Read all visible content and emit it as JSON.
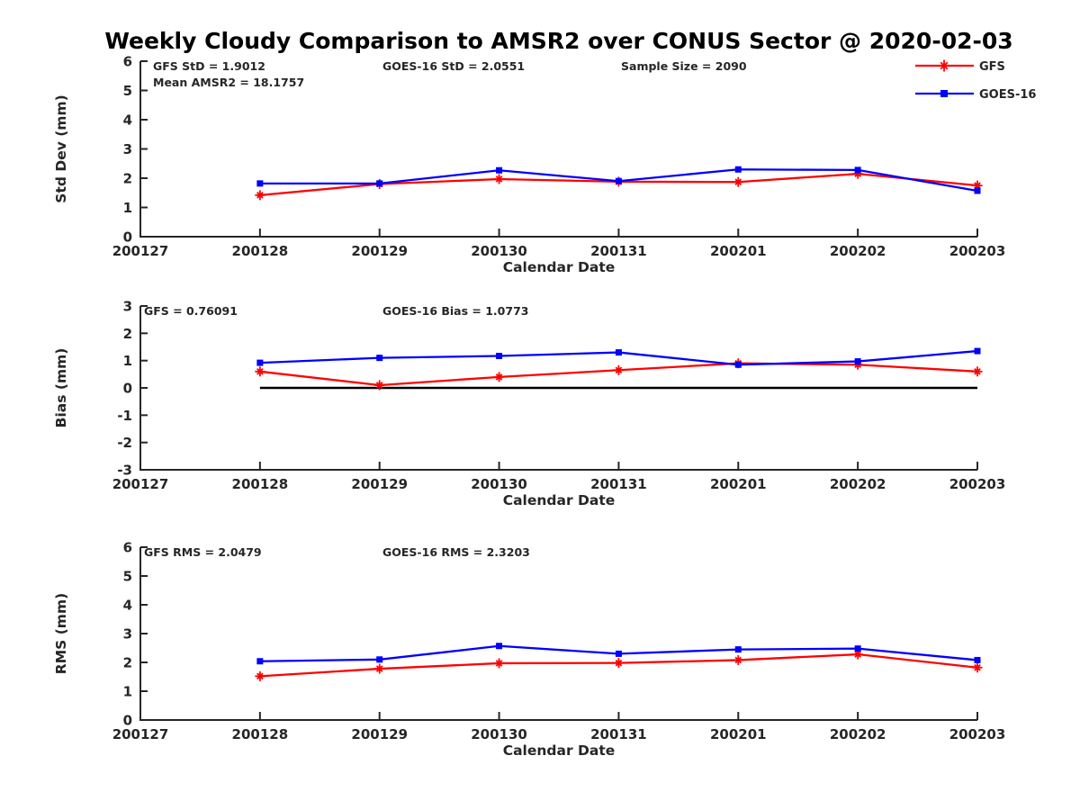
{
  "title": "Weekly Cloudy Comparison to AMSR2 over CONUS Sector @ 2020-02-03",
  "axis_color": "#262626",
  "series_colors": {
    "gfs": "#ff0000",
    "goes16": "#0000ff"
  },
  "legend": {
    "position": "top-right",
    "items": [
      {
        "label": "GFS",
        "color": "#ff0000",
        "marker": "asterisk"
      },
      {
        "label": "GOES-16",
        "color": "#0000ff",
        "marker": "square"
      }
    ]
  },
  "chart_data": [
    {
      "name": "std-dev",
      "type": "line",
      "ylabel": "Std Dev (mm)",
      "xlabel": "Calendar Date",
      "ylim": [
        0,
        6
      ],
      "yticks": [
        0,
        1,
        2,
        3,
        4,
        5,
        6
      ],
      "grid": false,
      "xticklabels": [
        "200127",
        "200128",
        "200129",
        "200130",
        "200131",
        "200201",
        "200202",
        "200203"
      ],
      "x": [
        "200128",
        "200129",
        "200130",
        "200131",
        "200201",
        "200202",
        "200203"
      ],
      "series": [
        {
          "name": "GFS",
          "color": "#ff0000",
          "marker": "asterisk",
          "values": [
            1.42,
            1.8,
            1.97,
            1.88,
            1.87,
            2.15,
            1.75
          ]
        },
        {
          "name": "GOES-16",
          "color": "#0000ff",
          "marker": "square",
          "values": [
            1.82,
            1.82,
            2.27,
            1.9,
            2.3,
            2.28,
            1.57
          ]
        }
      ],
      "zero_line": false,
      "annotations": [
        {
          "text": "GFS StD = 1.9012",
          "col": 0,
          "row": 0
        },
        {
          "text": "Mean AMSR2 = 18.1757",
          "col": 0,
          "row": 1
        },
        {
          "text": "GOES-16 StD = 2.0551",
          "col": 1,
          "row": 0
        },
        {
          "text": "Sample Size = 2090",
          "col": 2,
          "row": 0
        }
      ]
    },
    {
      "name": "bias",
      "type": "line",
      "ylabel": "Bias (mm)",
      "xlabel": "Calendar Date",
      "ylim": [
        -3,
        3
      ],
      "yticks": [
        -3,
        -2,
        -1,
        0,
        1,
        2,
        3
      ],
      "grid": false,
      "xticklabels": [
        "200127",
        "200128",
        "200129",
        "200130",
        "200131",
        "200201",
        "200202",
        "200203"
      ],
      "x": [
        "200128",
        "200129",
        "200130",
        "200131",
        "200201",
        "200202",
        "200203"
      ],
      "series": [
        {
          "name": "GFS",
          "color": "#ff0000",
          "marker": "asterisk",
          "values": [
            0.6,
            0.1,
            0.4,
            0.65,
            0.9,
            0.85,
            0.6
          ]
        },
        {
          "name": "GOES-16",
          "color": "#0000ff",
          "marker": "square",
          "values": [
            0.92,
            1.1,
            1.17,
            1.3,
            0.85,
            0.97,
            1.35
          ]
        }
      ],
      "zero_line": true,
      "annotations": [
        {
          "text": "GFS = 0.76091",
          "col": 0,
          "row": 0
        },
        {
          "text": "GOES-16 Bias  = 1.0773",
          "col": 1,
          "row": 0
        }
      ]
    },
    {
      "name": "rms",
      "type": "line",
      "ylabel": "RMS (mm)",
      "xlabel": "Calendar Date",
      "ylim": [
        0,
        6
      ],
      "yticks": [
        0,
        1,
        2,
        3,
        4,
        5,
        6
      ],
      "grid": false,
      "xticklabels": [
        "200127",
        "200128",
        "200129",
        "200130",
        "200131",
        "200201",
        "200202",
        "200203"
      ],
      "x": [
        "200128",
        "200129",
        "200130",
        "200131",
        "200201",
        "200202",
        "200203"
      ],
      "series": [
        {
          "name": "GFS",
          "color": "#ff0000",
          "marker": "asterisk",
          "values": [
            1.52,
            1.78,
            1.97,
            1.98,
            2.08,
            2.28,
            1.82
          ]
        },
        {
          "name": "GOES-16",
          "color": "#0000ff",
          "marker": "square",
          "values": [
            2.04,
            2.1,
            2.57,
            2.3,
            2.45,
            2.48,
            2.08
          ]
        }
      ],
      "zero_line": false,
      "annotations": [
        {
          "text": "GFS RMS = 2.0479",
          "col": 0,
          "row": 0
        },
        {
          "text": "GOES-16 RMS = 2.3203",
          "col": 1,
          "row": 0
        }
      ]
    }
  ]
}
